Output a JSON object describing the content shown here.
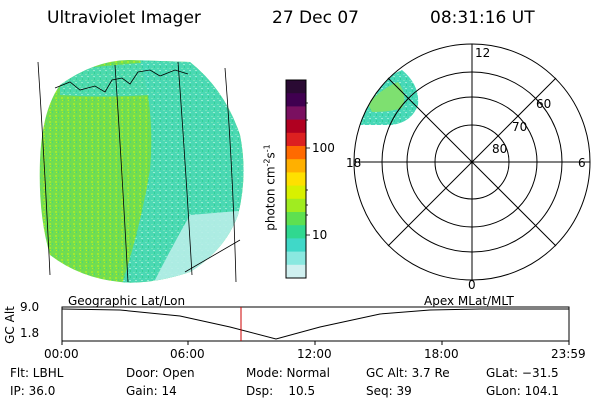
{
  "header": {
    "instrument": "Ultraviolet Imager",
    "date": "27 Dec 07",
    "time": "08:31:16 UT"
  },
  "colorbar": {
    "unit_label": "photon cm",
    "unit_exp1": "-2",
    "unit_s": "s",
    "unit_exp2": "-1",
    "ticks": [
      "100",
      "10"
    ],
    "colors": [
      "#2a0a33",
      "#400050",
      "#7a1060",
      "#b00020",
      "#dc2020",
      "#ff6a00",
      "#ffb000",
      "#ffe000",
      "#d8f000",
      "#a0ec20",
      "#5ee050",
      "#30d890",
      "#40d8c8",
      "#8ae8e0",
      "#d0f0f0"
    ]
  },
  "polar_plot": {
    "mlt_labels": {
      "top": "12",
      "left": "18",
      "right": "6",
      "bottom": "0"
    },
    "lat_labels": [
      "60",
      "70",
      "80"
    ]
  },
  "timeline": {
    "y_label": "GC Alt",
    "y_ticks": [
      "9.0",
      "1.8"
    ],
    "left_title": "Geographic Lat/Lon",
    "right_title": "Apex MLat/MLT",
    "x_ticks": [
      "00:00",
      "06:00",
      "12:00",
      "18:00",
      "23:59"
    ],
    "marker_color": "#cc0000"
  },
  "footer": {
    "filter": "Flt: LBHL",
    "ip": "IP: 36.0",
    "door": "Door: Open",
    "gain": "Gain: 14",
    "mode": "Mode: Normal",
    "dsp": "Dsp:    10.5",
    "gc_alt": "GC Alt: 3.7 Re",
    "seq": "Seq: 39",
    "glat": "GLat: −31.5",
    "glon": "GLon: 104.1"
  }
}
